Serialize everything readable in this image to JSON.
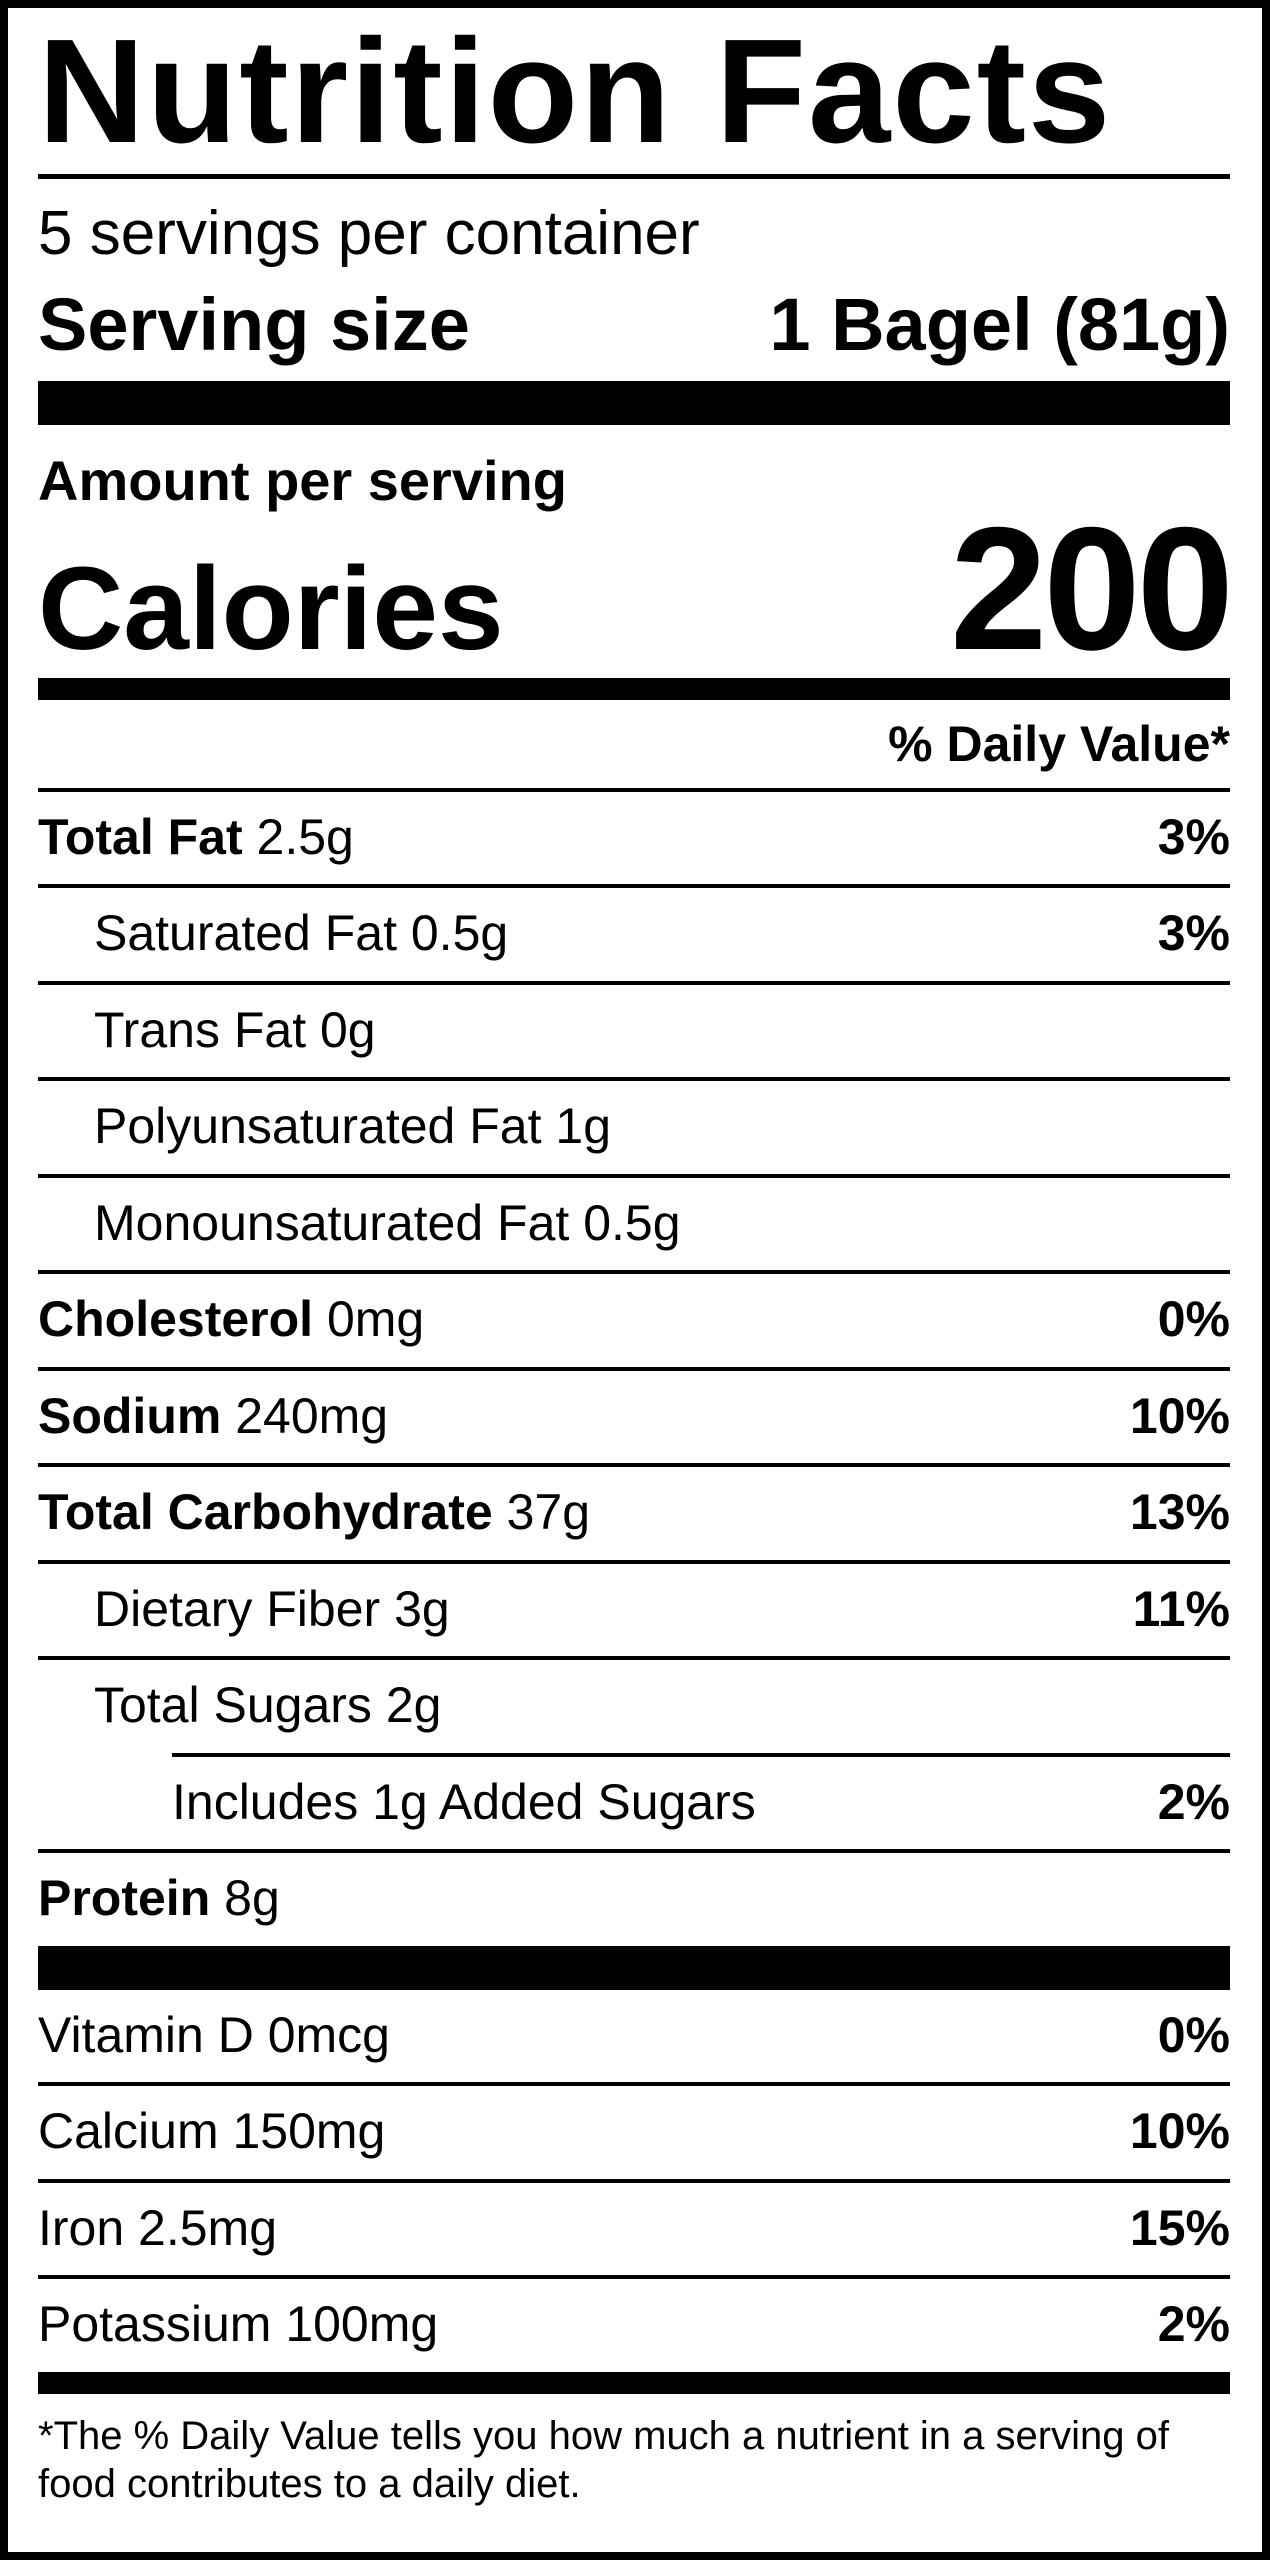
{
  "colors": {
    "ink": "#000000",
    "paper": "#ffffff"
  },
  "label": {
    "title": "Nutrition Facts",
    "servings_per_container": "5 servings per container",
    "serving_size_label": "Serving size",
    "serving_size_value": "1 Bagel (81g)",
    "amount_per_serving": "Amount per serving",
    "calories_label": "Calories",
    "calories_value": "200",
    "daily_value_header": "% Daily Value*",
    "nutrients": [
      {
        "name": "Total Fat",
        "amount": "2.5g",
        "dv": "3%",
        "bold": true,
        "indent": 0,
        "partial_rule": false
      },
      {
        "name": "Saturated Fat",
        "amount": "0.5g",
        "dv": "3%",
        "bold": false,
        "indent": 1,
        "partial_rule": false
      },
      {
        "name": "Trans Fat",
        "amount": "0g",
        "dv": "",
        "bold": false,
        "indent": 1,
        "partial_rule": false
      },
      {
        "name": "Polyunsaturated Fat",
        "amount": "1g",
        "dv": "",
        "bold": false,
        "indent": 1,
        "partial_rule": false
      },
      {
        "name": "Monounsaturated Fat",
        "amount": "0.5g",
        "dv": "",
        "bold": false,
        "indent": 1,
        "partial_rule": false
      },
      {
        "name": "Cholesterol",
        "amount": "0mg",
        "dv": "0%",
        "bold": true,
        "indent": 0,
        "partial_rule": false
      },
      {
        "name": "Sodium",
        "amount": "240mg",
        "dv": "10%",
        "bold": true,
        "indent": 0,
        "partial_rule": false
      },
      {
        "name": "Total Carbohydrate",
        "amount": "37g",
        "dv": "13%",
        "bold": true,
        "indent": 0,
        "partial_rule": false
      },
      {
        "name": "Dietary Fiber",
        "amount": "3g",
        "dv": "11%",
        "bold": false,
        "indent": 1,
        "partial_rule": false
      },
      {
        "name": "Total Sugars",
        "amount": "2g",
        "dv": "",
        "bold": false,
        "indent": 1,
        "partial_rule": false
      },
      {
        "name": "Includes 1g Added Sugars",
        "amount": "",
        "dv": "2%",
        "bold": false,
        "indent": 2,
        "partial_rule": true
      },
      {
        "name": "Protein",
        "amount": "8g",
        "dv": "",
        "bold": true,
        "indent": 0,
        "partial_rule": false
      }
    ],
    "vitamins": [
      {
        "name": "Vitamin D 0mcg",
        "dv": "0%"
      },
      {
        "name": "Calcium 150mg",
        "dv": "10%"
      },
      {
        "name": "Iron 2.5mg",
        "dv": "15%"
      },
      {
        "name": "Potassium 100mg",
        "dv": "2%"
      }
    ],
    "footnote": "*The % Daily Value tells you how much a nutrient in a serving of food contributes to a daily diet."
  }
}
